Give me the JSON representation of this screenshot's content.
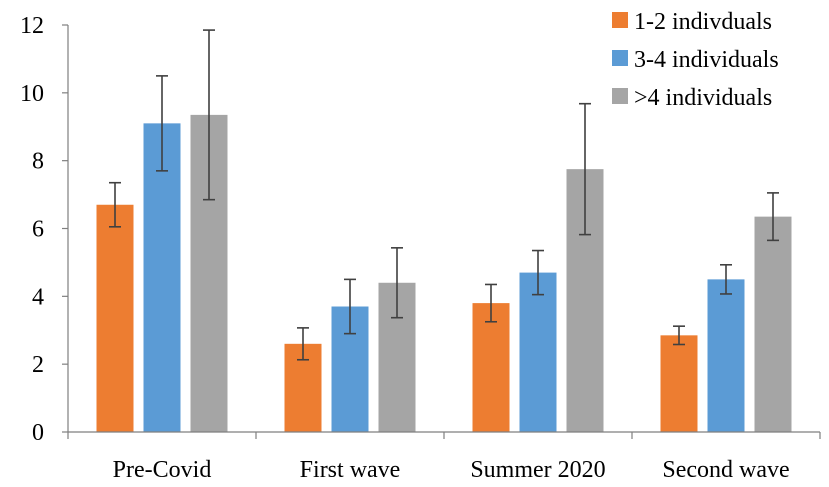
{
  "chart_data": {
    "type": "bar",
    "title": "",
    "xlabel": "",
    "ylabel": "",
    "categories": [
      "Pre-Covid",
      "First wave",
      "Summer 2020",
      "Second wave"
    ],
    "ylim": [
      0,
      12
    ],
    "yticks": [
      0,
      2,
      4,
      6,
      8,
      10,
      12
    ],
    "grid": false,
    "legend_position": "top-right",
    "error_bars": true,
    "series": [
      {
        "name": "1-2 indivduals",
        "color": "#ED7D31",
        "values": [
          6.7,
          2.6,
          3.8,
          2.85
        ],
        "errors": [
          0.65,
          0.47,
          0.55,
          0.27
        ]
      },
      {
        "name": "3-4 individuals",
        "color": "#5B9BD5",
        "values": [
          9.1,
          3.7,
          4.7,
          4.5
        ],
        "errors": [
          1.4,
          0.8,
          0.65,
          0.43
        ]
      },
      {
        "name": ">4 individuals",
        "color": "#A5A5A5",
        "values": [
          9.35,
          4.4,
          7.75,
          6.35
        ],
        "errors": [
          2.5,
          1.03,
          1.93,
          0.7
        ]
      }
    ]
  }
}
